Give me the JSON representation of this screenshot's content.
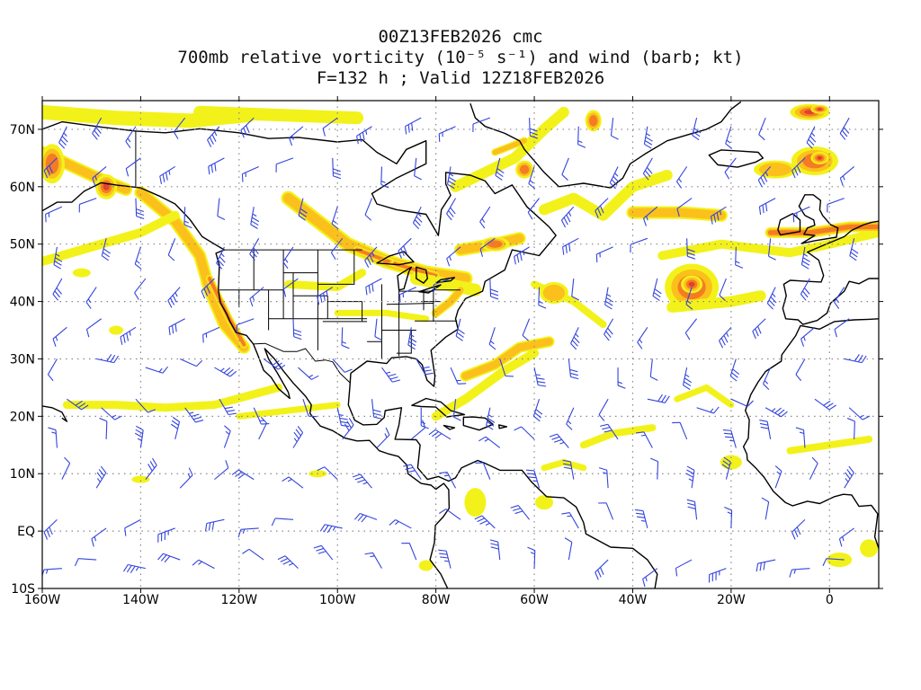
{
  "title": {
    "line1": "00Z13FEB2026 cmc",
    "line2": "700mb relative vorticity (10⁻⁵ s⁻¹) and wind (barb; kt)",
    "line3": "F=132 h ; Valid 12Z18FEB2026"
  },
  "map": {
    "lon_range": [
      -160,
      10
    ],
    "lat_range": [
      -10,
      75
    ],
    "x_ticks": [
      "160W",
      "140W",
      "120W",
      "100W",
      "80W",
      "60W",
      "40W",
      "20W",
      "0"
    ],
    "x_tick_values": [
      -160,
      -140,
      -120,
      -100,
      -80,
      -60,
      -40,
      -20,
      0
    ],
    "y_ticks": [
      "10S",
      "EQ",
      "10N",
      "20N",
      "30N",
      "40N",
      "50N",
      "60N",
      "70N"
    ],
    "y_tick_values": [
      -10,
      0,
      10,
      20,
      30,
      40,
      50,
      60,
      70
    ],
    "grid": true,
    "colors": {
      "level1": "#f2f21a",
      "level2": "#fcc01d",
      "level3": "#f47c22",
      "level4": "#e2402c",
      "level5": "#e8106c",
      "barb": "#3344dd",
      "coast": "#000000"
    }
  }
}
